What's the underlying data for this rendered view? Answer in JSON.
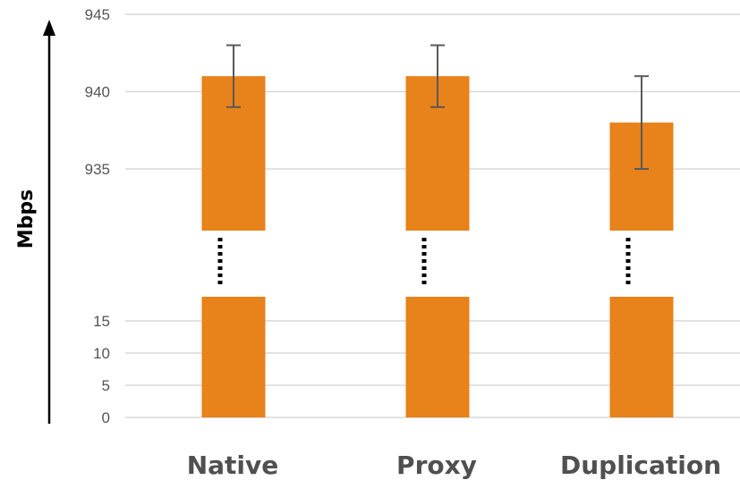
{
  "chart_data": {
    "type": "bar",
    "title": "",
    "ylabel": "Mbps",
    "xlabel": "",
    "categories": [
      "Native",
      "Proxy",
      "Duplication"
    ],
    "values": [
      941,
      941,
      938
    ],
    "error_bars": [
      {
        "low": 939,
        "high": 943
      },
      {
        "low": 939,
        "high": 943
      },
      {
        "low": 935,
        "high": 941
      }
    ],
    "broken_axis": true,
    "y_segments": [
      {
        "range": [
          0,
          15
        ],
        "ticks": [
          "0",
          "5",
          "10",
          "15"
        ]
      },
      {
        "range": [
          930,
          945
        ],
        "ticks": [
          "935",
          "940",
          "945"
        ]
      }
    ],
    "grid": true,
    "bar_color": "#E8821A",
    "error_bar_color": "#595959"
  }
}
